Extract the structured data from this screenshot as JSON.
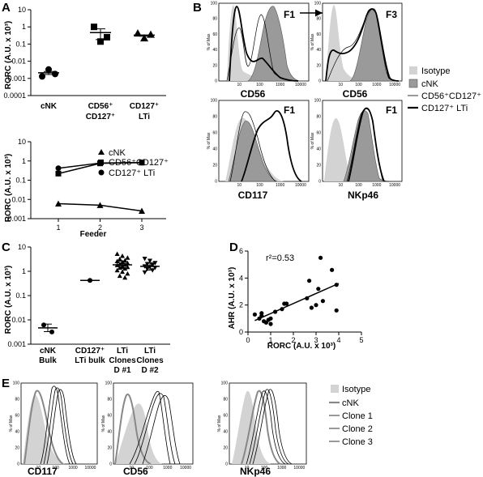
{
  "chart_data": [
    {
      "panel": "A",
      "type": "scatter",
      "ylabel": "RORC (A.U. x 10³)",
      "yscale": "log",
      "ylim": [
        0.0001,
        10
      ],
      "yticks": [
        "0.0001",
        "0.001",
        "0.01",
        "0.1",
        "1",
        "10"
      ],
      "categories": [
        "cNK",
        "CD56⁺ CD127⁺",
        "CD127⁺ LTi"
      ],
      "series": [
        {
          "values": [
            [
              0.0013,
              0.0033,
              0.0018
            ],
            [
              1.0,
              0.14,
              0.25
            ],
            [
              0.42,
              0.22,
              0.36
            ]
          ]
        }
      ]
    },
    {
      "panel": "A-lower",
      "type": "line",
      "ylabel": "RORC (A.U. x 10³)",
      "xlabel": "Feeder",
      "yscale": "log",
      "ylim": [
        0.001,
        10
      ],
      "yticks": [
        "0.001",
        "0.01",
        "0.1",
        "1",
        "10"
      ],
      "x": [
        1,
        2,
        3
      ],
      "series": [
        {
          "name": "cNK",
          "marker": "triangle",
          "values": [
            0.006,
            0.005,
            0.0025
          ]
        },
        {
          "name": "CD56⁺CD127⁺",
          "marker": "square",
          "values": [
            0.22,
            0.75,
            0.82
          ]
        },
        {
          "name": "CD127⁺ LTi",
          "marker": "circle",
          "values": [
            0.42,
            0.78,
            0.82
          ]
        }
      ]
    },
    {
      "panel": "C",
      "type": "scatter",
      "ylabel": "RORC (A.U. x 10³)",
      "yscale": "log",
      "ylim": [
        0.001,
        10
      ],
      "yticks": [
        "0.001",
        "0.01",
        "0.1",
        "1",
        "10"
      ],
      "categories": [
        "cNK Bulk",
        "CD127⁺ LTi bulk",
        "LTi Clones D #1",
        "LTi Clones D #2"
      ],
      "series": [
        {
          "values": [
            [
              0.0032,
              0.0062
            ],
            [
              0.42
            ],
            [
              5.2,
              4.3,
              3.6,
              3.2,
              2.8,
              2.6,
              2.4,
              2.2,
              2.0,
              1.9,
              1.8,
              1.6,
              1.5,
              1.4,
              1.3,
              1.1,
              0.95,
              0.8,
              0.65,
              0.55
            ],
            [
              3.3,
              2.7,
              2.2,
              2.0,
              1.8,
              1.6,
              1.5,
              1.4,
              1.25,
              1.1,
              0.9
            ]
          ]
        }
      ]
    },
    {
      "panel": "D",
      "type": "scatter",
      "annotation": "r²=0.53",
      "xlabel": "RORC (A.U. x 10³)",
      "ylabel": "AHR (A.U. x 10³)",
      "xlim": [
        0,
        5
      ],
      "ylim": [
        0,
        6
      ],
      "xticks": [
        0,
        1,
        2,
        3,
        4,
        5
      ],
      "yticks": [
        0,
        2,
        4,
        6
      ],
      "points": [
        [
          0.3,
          1.3
        ],
        [
          0.5,
          1.0
        ],
        [
          0.6,
          1.2
        ],
        [
          0.6,
          1.4
        ],
        [
          0.7,
          0.8
        ],
        [
          0.8,
          0.7
        ],
        [
          0.9,
          0.9
        ],
        [
          1.0,
          0.6
        ],
        [
          1.0,
          1.0
        ],
        [
          1.2,
          1.5
        ],
        [
          1.5,
          1.7
        ],
        [
          1.6,
          2.1
        ],
        [
          1.7,
          2.1
        ],
        [
          2.6,
          2.5
        ],
        [
          2.7,
          3.8
        ],
        [
          2.8,
          1.8
        ],
        [
          3.0,
          2.0
        ],
        [
          3.1,
          3.2
        ],
        [
          3.2,
          5.5
        ],
        [
          3.3,
          2.3
        ],
        [
          3.7,
          4.6
        ],
        [
          3.9,
          3.5
        ],
        [
          3.9,
          1.6
        ]
      ],
      "fit": [
        [
          0.3,
          0.85
        ],
        [
          4.0,
          3.6
        ]
      ]
    }
  ],
  "labels": {
    "A": "A",
    "B": "B",
    "C": "C",
    "D": "D",
    "E": "E",
    "feeder": "Feeder",
    "yunit": "% of Max",
    "F1": "F1",
    "F3": "F3",
    "CD56": "CD56",
    "CD117": "CD117",
    "NKp46": "NKp46",
    "r2": "r²=0.53",
    "dx": "RORC (A.U. x 10³)",
    "dy": "AHR (A.U. x 10³)"
  },
  "legendB": [
    "Isotype",
    "cNK",
    "CD56⁺CD127⁺",
    "CD127⁺ LTi"
  ],
  "legendE": [
    "Isotype",
    "cNK",
    "Clone 1",
    "Clone 2",
    "Clone 3"
  ],
  "histTicks": [
    "10",
    "100",
    "1000",
    "10000"
  ],
  "histTicksB": [
    "0",
    "20",
    "40",
    "60",
    "80",
    "100"
  ],
  "colors": {
    "isotype": "#d3d3d3",
    "cnk": "#9a9a9a",
    "line": "#000000"
  }
}
